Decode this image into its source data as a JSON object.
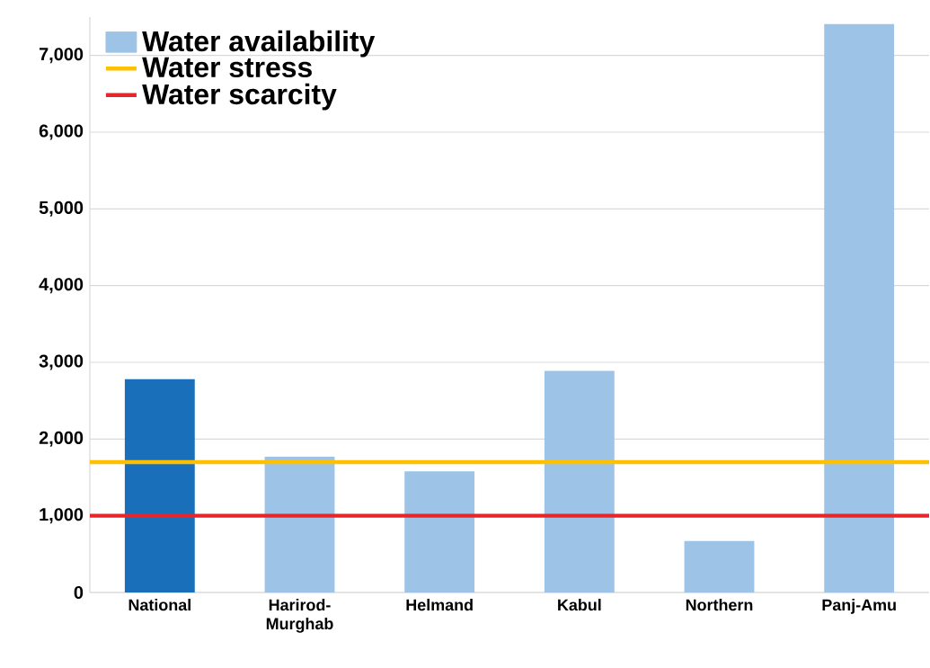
{
  "chart_data": {
    "type": "bar",
    "categories": [
      "National",
      "Harirod-Murghab",
      "Helmand",
      "Kabul",
      "Northern",
      "Panj-Amu"
    ],
    "series": [
      {
        "name": "Water availability",
        "color": "#9dc3e6",
        "colors": [
          "#1a6fba",
          "#9dc3e6",
          "#9dc3e6",
          "#9dc3e6",
          "#9dc3e6",
          "#9dc3e6"
        ],
        "values": [
          2780,
          1770,
          1580,
          2890,
          670,
          7410
        ]
      }
    ],
    "ylim": [
      0,
      7500
    ],
    "yticks": [
      0,
      {
        "value": 1000,
        "label": "1,000"
      },
      {
        "value": 2000,
        "label": "2,000"
      },
      {
        "value": 3000,
        "label": "3,000"
      },
      {
        "value": 4000,
        "label": "4,000"
      },
      {
        "value": 5000,
        "label": "5,000"
      },
      {
        "value": 6000,
        "label": "6,000"
      },
      {
        "value": 7000,
        "label": "7,000"
      }
    ],
    "ref_lines": [
      {
        "axis": "y",
        "value": 1700,
        "label": "Water stress",
        "color": "#ffc000"
      },
      {
        "axis": "y",
        "value": 1000,
        "label": "Water scarcity",
        "color": "#e8262a"
      }
    ],
    "grid": "y",
    "legend": "top left"
  }
}
